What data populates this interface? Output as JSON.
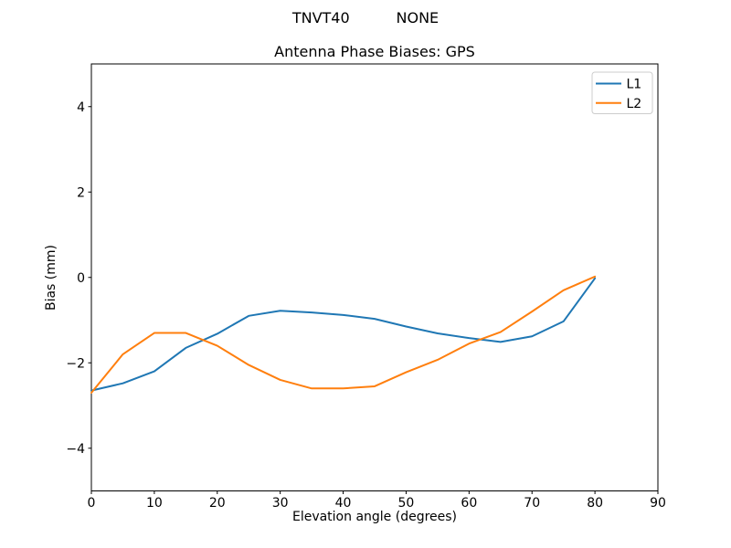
{
  "figure": {
    "suptitle": "TNVT40          NONE",
    "background": "#ffffff"
  },
  "chart_data": {
    "type": "line",
    "title": "Antenna Phase Biases: GPS",
    "xlabel": "Elevation angle (degrees)",
    "ylabel": "Bias (mm)",
    "xlim": [
      0,
      90
    ],
    "ylim": [
      -5,
      5
    ],
    "xticks": [
      0,
      10,
      20,
      30,
      40,
      50,
      60,
      70,
      80,
      90
    ],
    "xticklabels": [
      "0",
      "10",
      "20",
      "30",
      "40",
      "50",
      "60",
      "70",
      "80",
      "90"
    ],
    "yticks": [
      -4,
      -2,
      0,
      2,
      4
    ],
    "yticklabels": [
      "−4",
      "−2",
      "0",
      "2",
      "4"
    ],
    "grid": false,
    "legend": {
      "position": "upper right",
      "entries": [
        "L1",
        "L2"
      ]
    },
    "x": [
      0,
      5,
      10,
      15,
      20,
      25,
      30,
      35,
      40,
      45,
      50,
      55,
      60,
      65,
      70,
      75,
      80
    ],
    "series": [
      {
        "name": "L1",
        "color": "#1f77b4",
        "values": [
          -2.65,
          -2.48,
          -2.2,
          -1.65,
          -1.32,
          -0.9,
          -0.78,
          -0.82,
          -0.88,
          -0.97,
          -1.15,
          -1.31,
          -1.42,
          -1.51,
          -1.38,
          -1.03,
          -0.02
        ]
      },
      {
        "name": "L2",
        "color": "#ff7f0e",
        "values": [
          -2.7,
          -1.8,
          -1.3,
          -1.3,
          -1.6,
          -2.05,
          -2.4,
          -2.6,
          -2.6,
          -2.55,
          -2.22,
          -1.93,
          -1.55,
          -1.28,
          -0.8,
          -0.3,
          0.02
        ]
      }
    ],
    "axis_color": "#000000",
    "legend_edge_color": "#cccccc"
  }
}
